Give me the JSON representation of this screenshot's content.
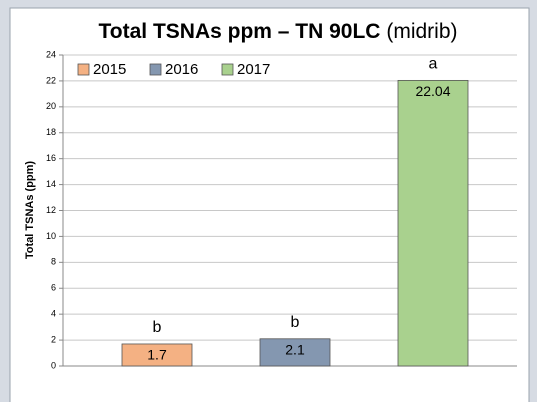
{
  "chart_data": {
    "type": "bar",
    "title_parts": [
      "Total TSNAs ppm – TN 90LC",
      "(midrib)"
    ],
    "ylabel": "Total TSNAs (ppm)",
    "categories": [
      "2015",
      "2016",
      "2017"
    ],
    "values": [
      1.7,
      2.1,
      22.04
    ],
    "colors": [
      "#f4b183",
      "#8497b0",
      "#a9d18e"
    ],
    "annotations": [
      "b",
      "b",
      "a"
    ],
    "ylim": [
      0,
      24
    ],
    "yticks": [
      0,
      2,
      4,
      6,
      8,
      10,
      12,
      14,
      16,
      18,
      20,
      22,
      24
    ],
    "grid": true,
    "legend": "top-left"
  }
}
